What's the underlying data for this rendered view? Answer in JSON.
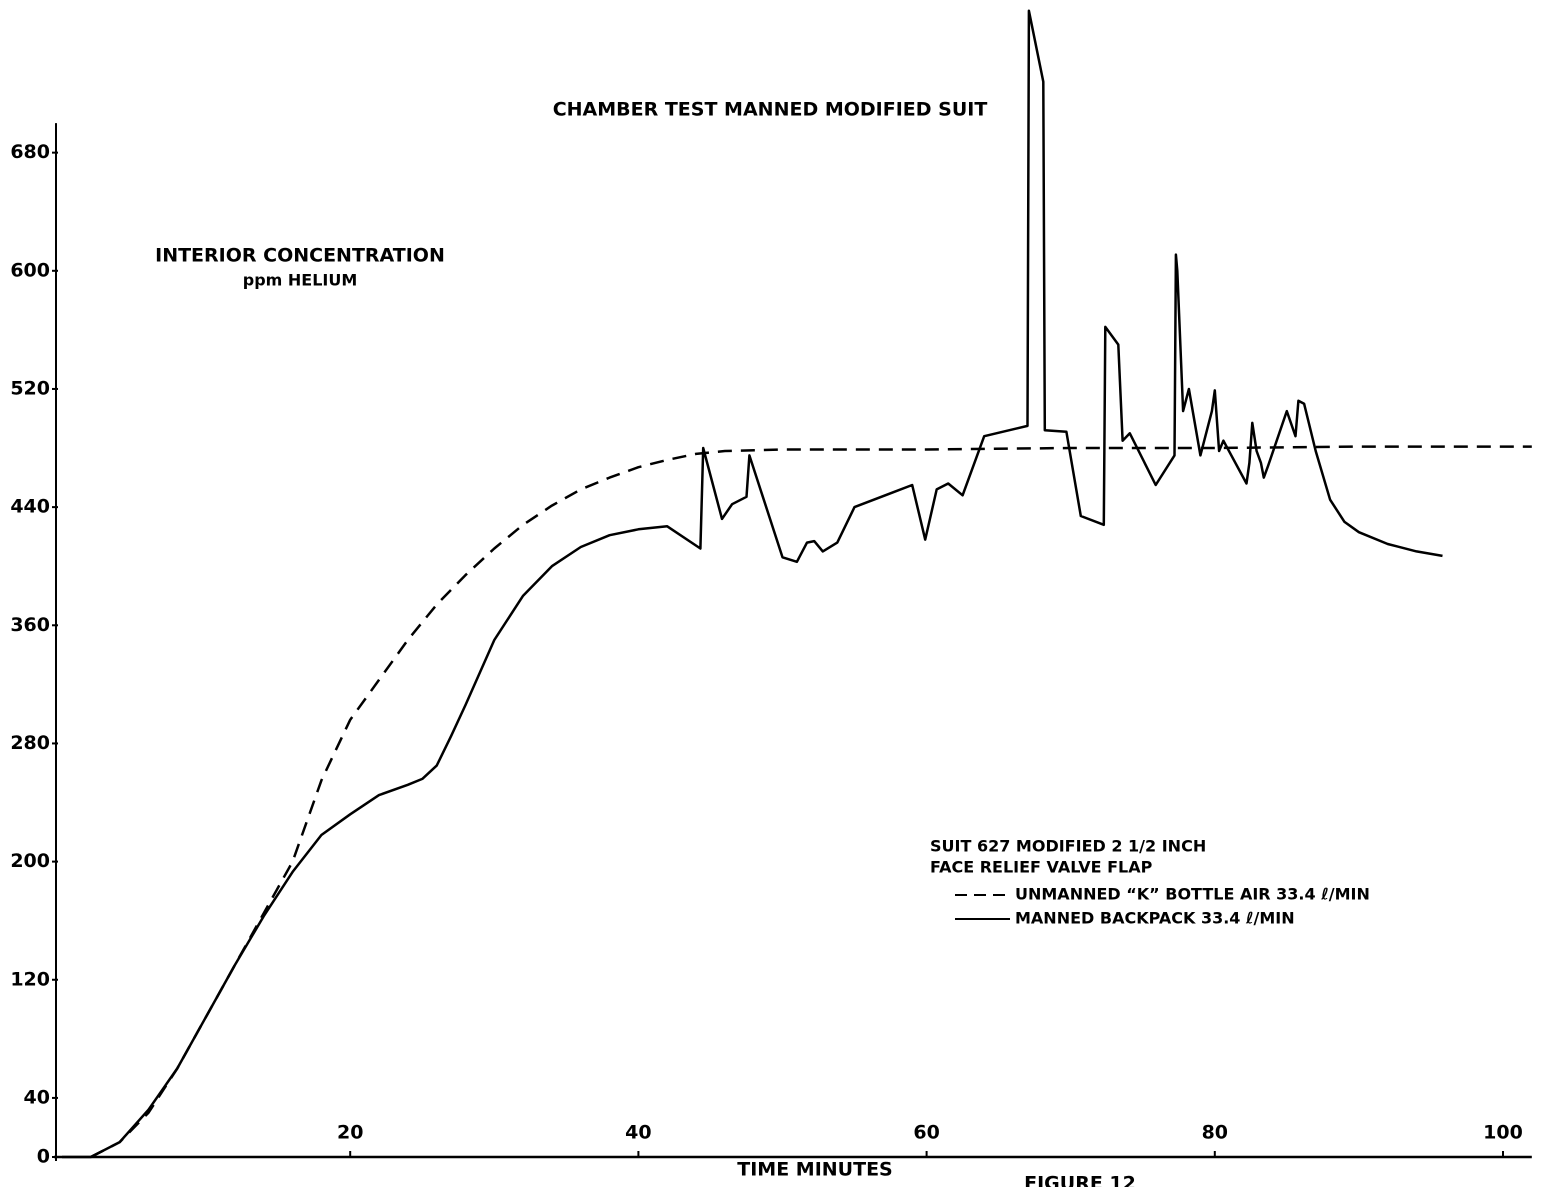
{
  "chart_data": {
    "type": "line",
    "title": "CHAMBER TEST MANNED MODIFIED SUIT",
    "y_label": [
      "INTERIOR CONCENTRATION",
      "ppm HELIUM"
    ],
    "x_label": "TIME MINUTES",
    "figure_label": "FIGURE 12",
    "legend_title": [
      "SUIT 627 MODIFIED 2 1/2 INCH",
      "FACE RELIEF VALVE FLAP"
    ],
    "xlim": [
      0,
      102
    ],
    "ylim": [
      0,
      700
    ],
    "xticks": [
      20,
      40,
      60,
      80,
      100
    ],
    "yticks": [
      0,
      40,
      120,
      200,
      280,
      360,
      440,
      520,
      600,
      680
    ],
    "series": [
      {
        "name": "UNMANNED “K” BOTTLE AIR 33.4 ℓ/MIN",
        "color": "#000000",
        "dash": true,
        "x": [
          2,
          4,
          6,
          8,
          10,
          12,
          14,
          16,
          18,
          20,
          22,
          24,
          26,
          28,
          30,
          32,
          34,
          36,
          38,
          40,
          42,
          44,
          46,
          50,
          60,
          70,
          80,
          90,
          102
        ],
        "values": [
          0,
          10,
          30,
          60,
          95,
          130,
          165,
          200,
          255,
          296,
          323,
          350,
          374,
          394,
          412,
          428,
          441,
          452,
          460,
          467,
          472,
          476,
          478,
          479,
          479,
          480,
          480,
          481,
          481
        ]
      },
      {
        "name": "MANNED BACKPACK 33.4 ℓ/MIN",
        "color": "#000000",
        "dash": false,
        "x": [
          0,
          2,
          4,
          6,
          8,
          10,
          12,
          14,
          16,
          18,
          20,
          22,
          24,
          25,
          26,
          27,
          28,
          30,
          32,
          34,
          36,
          38,
          40,
          42,
          44.3,
          44.5,
          45.8,
          46.5,
          47.5,
          47.7,
          50,
          51,
          51.7,
          52.2,
          52.8,
          53.8,
          55,
          59,
          59.9,
          60.7,
          61.5,
          62.5,
          64,
          67,
          67.1,
          68.1,
          68.2,
          69.7,
          70.7,
          72.3,
          72.4,
          73.3,
          73.6,
          74.1,
          75.9,
          77.2,
          77.3,
          77.4,
          77.8,
          78.2,
          79,
          79.8,
          80,
          80.3,
          80.6,
          82.2,
          82.4,
          82.6,
          82.9,
          83.2,
          83.4,
          83.7,
          85,
          85.6,
          85.8,
          86.2,
          87,
          88,
          89,
          90,
          92,
          94,
          95.8
        ],
        "values": [
          0,
          0,
          10,
          32,
          60,
          95,
          130,
          163,
          193,
          218,
          232,
          245,
          252,
          256,
          265,
          285,
          306,
          350,
          380,
          400,
          413,
          421,
          425,
          427,
          412,
          480,
          432,
          442,
          447,
          475,
          406,
          403,
          416,
          417,
          410,
          416,
          440,
          455,
          418,
          452,
          456,
          448,
          488,
          495,
          776,
          728,
          492,
          491,
          434,
          428,
          562,
          550,
          485,
          490,
          455,
          475,
          611,
          600,
          505,
          520,
          475,
          505,
          519,
          478,
          485,
          456,
          470,
          497,
          478,
          470,
          460,
          468,
          505,
          488,
          512,
          510,
          478,
          445,
          430,
          423,
          415,
          410,
          407
        ]
      }
    ]
  }
}
